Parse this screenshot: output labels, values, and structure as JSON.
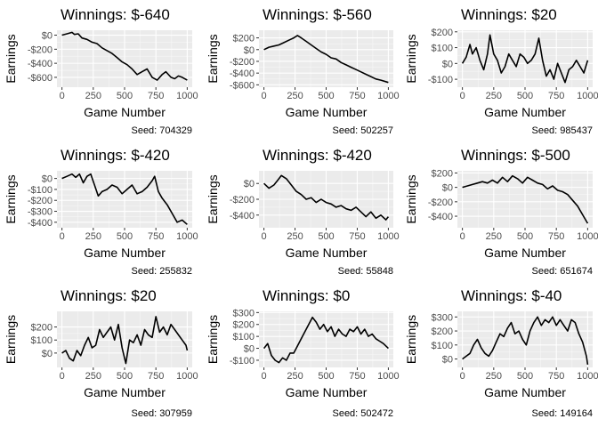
{
  "chart_data": [
    {
      "type": "line",
      "title": "Winnings: $-640",
      "xlabel": "Game Number",
      "ylabel": "Earnings",
      "caption": "Seed: 704329",
      "xlim": [
        -40,
        1040
      ],
      "ylim": [
        -740,
        70
      ],
      "x_ticks": [
        0,
        250,
        500,
        750,
        1000
      ],
      "y_ticks": [
        0,
        -200,
        -400,
        -600
      ],
      "y_tick_labels": [
        "$0",
        "-$200",
        "-$400",
        "-$600"
      ],
      "background": "#ebebeb",
      "grid": true,
      "series": [
        {
          "x": [
            0,
            40,
            80,
            100,
            130,
            160,
            200,
            240,
            280,
            320,
            360,
            400,
            440,
            480,
            520,
            560,
            600,
            640,
            680,
            720,
            760,
            800,
            830,
            870,
            900,
            930,
            960,
            1000
          ],
          "values": [
            0,
            20,
            40,
            10,
            20,
            -40,
            -60,
            -100,
            -120,
            -180,
            -220,
            -260,
            -320,
            -380,
            -420,
            -480,
            -560,
            -520,
            -480,
            -600,
            -640,
            -560,
            -520,
            -600,
            -620,
            -580,
            -600,
            -640
          ]
        }
      ]
    },
    {
      "type": "line",
      "title": "Winnings: $-560",
      "xlabel": "Game Number",
      "ylabel": "Earnings",
      "caption": "Seed: 502257",
      "xlim": [
        -40,
        1040
      ],
      "ylim": [
        -640,
        330
      ],
      "x_ticks": [
        0,
        250,
        500,
        750,
        1000
      ],
      "y_ticks": [
        200,
        0,
        -200,
        -400,
        -600
      ],
      "y_tick_labels": [
        "$200",
        "$0",
        "-$200",
        "-$400",
        "-$600"
      ],
      "background": "#ebebeb",
      "grid": true,
      "series": [
        {
          "x": [
            0,
            40,
            80,
            120,
            160,
            200,
            240,
            270,
            300,
            340,
            380,
            420,
            460,
            500,
            540,
            580,
            620,
            660,
            700,
            740,
            780,
            820,
            860,
            900,
            940,
            1000
          ],
          "values": [
            0,
            40,
            60,
            80,
            120,
            160,
            200,
            240,
            200,
            140,
            80,
            20,
            -40,
            -80,
            -140,
            -160,
            -220,
            -260,
            -300,
            -340,
            -380,
            -420,
            -460,
            -500,
            -520,
            -560
          ]
        }
      ]
    },
    {
      "type": "line",
      "title": "Winnings: $20",
      "xlabel": "Game Number",
      "ylabel": "Earnings",
      "caption": "Seed: 985437",
      "xlim": [
        -40,
        1040
      ],
      "ylim": [
        -150,
        210
      ],
      "x_ticks": [
        0,
        250,
        500,
        750,
        1000
      ],
      "y_ticks": [
        200,
        100,
        0,
        -100
      ],
      "y_tick_labels": [
        "$200",
        "$100",
        "$0",
        "-$100"
      ],
      "background": "#ebebeb",
      "grid": true,
      "series": [
        {
          "x": [
            0,
            30,
            60,
            80,
            110,
            140,
            170,
            200,
            220,
            250,
            280,
            310,
            340,
            370,
            400,
            430,
            460,
            490,
            520,
            550,
            580,
            610,
            640,
            670,
            700,
            730,
            760,
            790,
            820,
            850,
            880,
            910,
            940,
            970,
            1000
          ],
          "values": [
            0,
            40,
            120,
            60,
            100,
            20,
            -40,
            60,
            180,
            60,
            20,
            -60,
            -20,
            60,
            20,
            -20,
            60,
            40,
            0,
            20,
            60,
            160,
            20,
            -80,
            -40,
            -100,
            0,
            -60,
            -120,
            -40,
            -20,
            20,
            -20,
            -60,
            20
          ]
        }
      ]
    },
    {
      "type": "line",
      "title": "Winnings: $-420",
      "xlabel": "Game Number",
      "ylabel": "Earnings",
      "caption": "Seed: 255832",
      "xlim": [
        -40,
        1040
      ],
      "ylim": [
        -450,
        70
      ],
      "x_ticks": [
        0,
        250,
        500,
        750,
        1000
      ],
      "y_ticks": [
        0,
        -100,
        -200,
        -300,
        -400
      ],
      "y_tick_labels": [
        "$0",
        "-$100",
        "-$200",
        "-$300",
        "-$400"
      ],
      "background": "#ebebeb",
      "grid": true,
      "series": [
        {
          "x": [
            0,
            40,
            80,
            110,
            140,
            170,
            200,
            230,
            260,
            290,
            320,
            360,
            400,
            440,
            480,
            520,
            560,
            600,
            640,
            680,
            720,
            740,
            770,
            800,
            840,
            880,
            920,
            960,
            1000
          ],
          "values": [
            0,
            20,
            40,
            10,
            40,
            -40,
            20,
            40,
            -60,
            -160,
            -120,
            -100,
            -60,
            -80,
            -140,
            -100,
            -60,
            -140,
            -120,
            -80,
            -20,
            20,
            -120,
            -180,
            -240,
            -320,
            -400,
            -380,
            -420
          ]
        }
      ]
    },
    {
      "type": "line",
      "title": "Winnings: $-420",
      "xlabel": "Game Number",
      "ylabel": "Earnings",
      "caption": "Seed: 55848",
      "xlim": [
        -40,
        1040
      ],
      "ylim": [
        -560,
        160
      ],
      "x_ticks": [
        0,
        250,
        500,
        750,
        1000
      ],
      "y_ticks": [
        0,
        -200,
        -400
      ],
      "y_tick_labels": [
        "$0",
        "-$200",
        "-$400"
      ],
      "background": "#ebebeb",
      "grid": true,
      "series": [
        {
          "x": [
            0,
            40,
            80,
            110,
            140,
            180,
            220,
            260,
            300,
            340,
            380,
            420,
            460,
            500,
            540,
            580,
            620,
            660,
            700,
            740,
            780,
            820,
            860,
            900,
            940,
            980,
            1000
          ],
          "values": [
            0,
            -60,
            -20,
            40,
            100,
            60,
            -20,
            -100,
            -140,
            -200,
            -180,
            -240,
            -200,
            -240,
            -260,
            -300,
            -280,
            -320,
            -340,
            -300,
            -360,
            -420,
            -360,
            -440,
            -400,
            -460,
            -420
          ]
        }
      ]
    },
    {
      "type": "line",
      "title": "Winnings: $-500",
      "xlabel": "Game Number",
      "ylabel": "Earnings",
      "caption": "Seed: 651674",
      "xlim": [
        -40,
        1040
      ],
      "ylim": [
        -560,
        230
      ],
      "x_ticks": [
        0,
        250,
        500,
        750,
        1000
      ],
      "y_ticks": [
        200,
        0,
        -200,
        -400
      ],
      "y_tick_labels": [
        "$200",
        "$0",
        "-$200",
        "-$400"
      ],
      "background": "#ebebeb",
      "grid": true,
      "series": [
        {
          "x": [
            0,
            40,
            80,
            120,
            160,
            200,
            240,
            280,
            320,
            360,
            400,
            440,
            480,
            520,
            560,
            600,
            640,
            680,
            720,
            760,
            800,
            840,
            880,
            920,
            960,
            1000
          ],
          "values": [
            0,
            20,
            40,
            60,
            80,
            60,
            100,
            60,
            140,
            80,
            160,
            120,
            60,
            140,
            100,
            60,
            40,
            -20,
            20,
            -40,
            -60,
            -100,
            -180,
            -260,
            -380,
            -500
          ]
        }
      ]
    },
    {
      "type": "line",
      "title": "Winnings: $20",
      "xlabel": "Game Number",
      "ylabel": "Earnings",
      "caption": "Seed: 307959",
      "xlim": [
        -40,
        1040
      ],
      "ylim": [
        -110,
        320
      ],
      "x_ticks": [
        0,
        250,
        500,
        750,
        1000
      ],
      "y_ticks": [
        200,
        100,
        0
      ],
      "y_tick_labels": [
        "$200",
        "$100",
        "$0"
      ],
      "background": "#ebebeb",
      "grid": true,
      "series": [
        {
          "x": [
            0,
            30,
            60,
            90,
            120,
            150,
            180,
            210,
            240,
            270,
            300,
            330,
            360,
            390,
            420,
            450,
            480,
            510,
            540,
            570,
            600,
            630,
            660,
            690,
            720,
            750,
            780,
            810,
            840,
            870,
            900,
            930,
            960,
            990,
            1000
          ],
          "values": [
            0,
            20,
            -40,
            -60,
            20,
            -20,
            60,
            120,
            40,
            60,
            180,
            120,
            160,
            200,
            100,
            220,
            40,
            -80,
            100,
            80,
            140,
            60,
            180,
            140,
            120,
            280,
            160,
            200,
            140,
            220,
            180,
            140,
            100,
            60,
            20
          ]
        }
      ]
    },
    {
      "type": "line",
      "title": "Winnings: $0",
      "xlabel": "Game Number",
      "ylabel": "Earnings",
      "caption": "Seed: 502472",
      "xlim": [
        -40,
        1040
      ],
      "ylim": [
        -160,
        310
      ],
      "x_ticks": [
        0,
        250,
        500,
        750,
        1000
      ],
      "y_ticks": [
        300,
        200,
        100,
        0,
        -100
      ],
      "y_tick_labels": [
        "$300",
        "$200",
        "$100",
        "$0",
        "-$100"
      ],
      "background": "#ebebeb",
      "grid": true,
      "series": [
        {
          "x": [
            0,
            30,
            60,
            90,
            120,
            150,
            180,
            210,
            240,
            270,
            300,
            330,
            360,
            390,
            420,
            450,
            480,
            510,
            540,
            570,
            600,
            630,
            660,
            690,
            720,
            750,
            780,
            810,
            840,
            870,
            900,
            930,
            960,
            1000
          ],
          "values": [
            0,
            40,
            -60,
            -100,
            -120,
            -80,
            -100,
            -40,
            -40,
            20,
            80,
            140,
            200,
            260,
            220,
            160,
            200,
            140,
            180,
            100,
            160,
            120,
            100,
            160,
            140,
            180,
            120,
            160,
            100,
            120,
            80,
            60,
            40,
            0
          ]
        }
      ]
    },
    {
      "type": "line",
      "title": "Winnings: $-40",
      "xlabel": "Game Number",
      "ylabel": "Earnings",
      "caption": "Seed: 149164",
      "xlim": [
        -40,
        1040
      ],
      "ylim": [
        -60,
        340
      ],
      "x_ticks": [
        0,
        250,
        500,
        750,
        1000
      ],
      "y_ticks": [
        300,
        200,
        100,
        0
      ],
      "y_tick_labels": [
        "$300",
        "$200",
        "$100",
        "$0"
      ],
      "background": "#ebebeb",
      "grid": true,
      "series": [
        {
          "x": [
            0,
            30,
            60,
            90,
            120,
            150,
            180,
            210,
            240,
            270,
            300,
            330,
            360,
            390,
            420,
            450,
            480,
            510,
            540,
            570,
            600,
            630,
            660,
            690,
            720,
            750,
            780,
            810,
            840,
            870,
            900,
            930,
            960,
            990,
            1000
          ],
          "values": [
            0,
            20,
            40,
            100,
            140,
            80,
            40,
            20,
            60,
            120,
            180,
            160,
            220,
            260,
            180,
            200,
            140,
            100,
            200,
            260,
            300,
            240,
            280,
            260,
            300,
            240,
            280,
            240,
            200,
            280,
            260,
            180,
            120,
            20,
            -40
          ]
        }
      ]
    }
  ]
}
